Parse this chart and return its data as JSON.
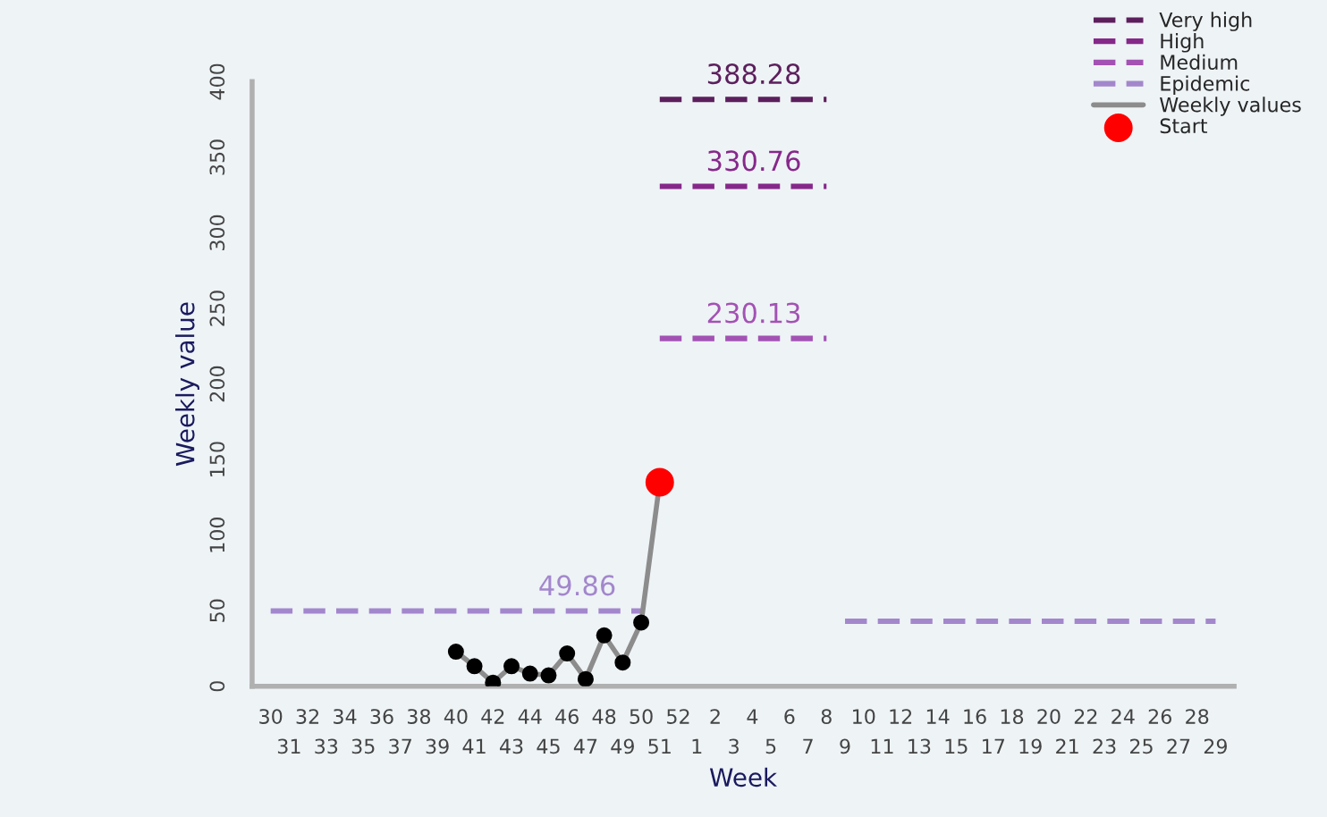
{
  "chart_data": {
    "type": "line",
    "xlabel": "Week",
    "ylabel": "Weekly value",
    "categories": [
      "30",
      "31",
      "32",
      "33",
      "34",
      "35",
      "36",
      "37",
      "38",
      "39",
      "40",
      "41",
      "42",
      "43",
      "44",
      "45",
      "46",
      "47",
      "48",
      "49",
      "50",
      "51",
      "52",
      "1",
      "2",
      "3",
      "4",
      "5",
      "6",
      "7",
      "8",
      "9",
      "10",
      "11",
      "12",
      "13",
      "14",
      "15",
      "16",
      "17",
      "18",
      "19",
      "20",
      "21",
      "22",
      "23",
      "24",
      "25",
      "26",
      "27",
      "28",
      "29"
    ],
    "ylim": [
      0,
      400
    ],
    "yticks": [
      0,
      50,
      100,
      150,
      200,
      250,
      300,
      350,
      400
    ],
    "grid": false,
    "legend": "top right",
    "series": [
      {
        "name": "Very high",
        "line_style": "dashed",
        "marker": "none",
        "color": "#5c1f5c",
        "values": [
          null,
          null,
          null,
          null,
          null,
          null,
          null,
          null,
          null,
          null,
          null,
          null,
          null,
          null,
          null,
          null,
          null,
          null,
          null,
          null,
          null,
          388.28,
          388.28,
          388.28,
          388.28,
          388.28,
          388.28,
          388.28,
          388.28,
          388.28,
          388.28,
          null,
          null,
          null,
          null,
          null,
          null,
          null,
          null,
          null,
          null,
          null,
          null,
          null,
          null,
          null,
          null,
          null,
          null,
          null,
          null,
          null
        ]
      },
      {
        "name": "High",
        "line_style": "dashed",
        "marker": "none",
        "color": "#86288a",
        "values": [
          null,
          null,
          null,
          null,
          null,
          null,
          null,
          null,
          null,
          null,
          null,
          null,
          null,
          null,
          null,
          null,
          null,
          null,
          null,
          null,
          null,
          330.76,
          330.76,
          330.76,
          330.76,
          330.76,
          330.76,
          330.76,
          330.76,
          330.76,
          330.76,
          null,
          null,
          null,
          null,
          null,
          null,
          null,
          null,
          null,
          null,
          null,
          null,
          null,
          null,
          null,
          null,
          null,
          null,
          null,
          null,
          null
        ]
      },
      {
        "name": "Medium",
        "line_style": "dashed",
        "marker": "none",
        "color": "#a352b4",
        "values": [
          null,
          null,
          null,
          null,
          null,
          null,
          null,
          null,
          null,
          null,
          null,
          null,
          null,
          null,
          null,
          null,
          null,
          null,
          null,
          null,
          null,
          230.13,
          230.13,
          230.13,
          230.13,
          230.13,
          230.13,
          230.13,
          230.13,
          230.13,
          230.13,
          null,
          null,
          null,
          null,
          null,
          null,
          null,
          null,
          null,
          null,
          null,
          null,
          null,
          null,
          null,
          null,
          null,
          null,
          null,
          null,
          null
        ]
      },
      {
        "name": "Epidemic",
        "line_style": "dashed",
        "marker": "none",
        "color": "#a387cc",
        "values": [
          49.86,
          49.86,
          49.86,
          49.86,
          49.86,
          49.86,
          49.86,
          49.86,
          49.86,
          49.86,
          49.86,
          49.86,
          49.86,
          49.86,
          49.86,
          49.86,
          49.86,
          49.86,
          49.86,
          49.86,
          49.86,
          null,
          null,
          null,
          null,
          null,
          null,
          null,
          null,
          null,
          null,
          43,
          43,
          43,
          43,
          43,
          43,
          43,
          43,
          43,
          43,
          43,
          43,
          43,
          43,
          43,
          43,
          43,
          43,
          43,
          43,
          43
        ]
      },
      {
        "name": "Weekly values",
        "line_style": "solid",
        "marker": "circle",
        "color": "#8c8c8c",
        "colors": [
          "#000000",
          "#000000",
          "#000000",
          "#000000",
          "#000000",
          "#000000",
          "#000000",
          "#000000",
          "#000000",
          "#000000",
          "#000000",
          "#000000",
          "#000000",
          "#000000",
          "#000000",
          "#000000",
          "#000000",
          "#000000",
          "#000000",
          "#000000",
          "#000000",
          "#000000",
          "#000000",
          "#000000",
          "#000000",
          "#000000",
          "#000000",
          "#000000",
          "#000000",
          "#000000",
          "#000000",
          "#000000",
          "#000000",
          "#000000",
          "#000000",
          "#000000",
          "#000000",
          "#000000",
          "#000000",
          "#000000",
          "#000000",
          "#000000",
          "#000000",
          "#000000",
          "#000000",
          "#000000",
          "#000000",
          "#000000",
          "#000000",
          "#000000",
          "#000000",
          "#000000"
        ],
        "values": [
          null,
          null,
          null,
          null,
          null,
          null,
          null,
          null,
          null,
          null,
          22.9,
          13.3,
          2.4,
          13.3,
          8.4,
          7.2,
          21.7,
          4.8,
          33.7,
          15.7,
          42.2,
          135,
          null,
          null,
          null,
          null,
          null,
          null,
          null,
          null,
          null,
          null,
          null,
          null,
          null,
          null,
          null,
          null,
          null,
          null,
          null,
          null,
          null,
          null,
          null,
          null,
          null,
          null,
          null,
          null,
          null,
          null
        ]
      },
      {
        "name": "Start",
        "type": "scatter",
        "marker": "circle",
        "color": "#ff0000",
        "values": [
          null,
          null,
          null,
          null,
          null,
          null,
          null,
          null,
          null,
          null,
          null,
          null,
          null,
          null,
          null,
          null,
          null,
          null,
          null,
          null,
          null,
          135,
          null,
          null,
          null,
          null,
          null,
          null,
          null,
          null,
          null,
          null,
          null,
          null,
          null,
          null,
          null,
          null,
          null,
          null,
          null,
          null,
          null,
          null,
          null,
          null,
          null,
          null,
          null,
          null,
          null,
          null
        ]
      }
    ],
    "annotations": [
      {
        "text": "388.28",
        "x": "8",
        "y": 388.28
      },
      {
        "text": "330.76",
        "x": "8",
        "y": 330.76
      },
      {
        "text": "230.13",
        "x": "8",
        "y": 230.13
      },
      {
        "text": "49.86",
        "x": "50",
        "y": 49.86
      }
    ]
  }
}
